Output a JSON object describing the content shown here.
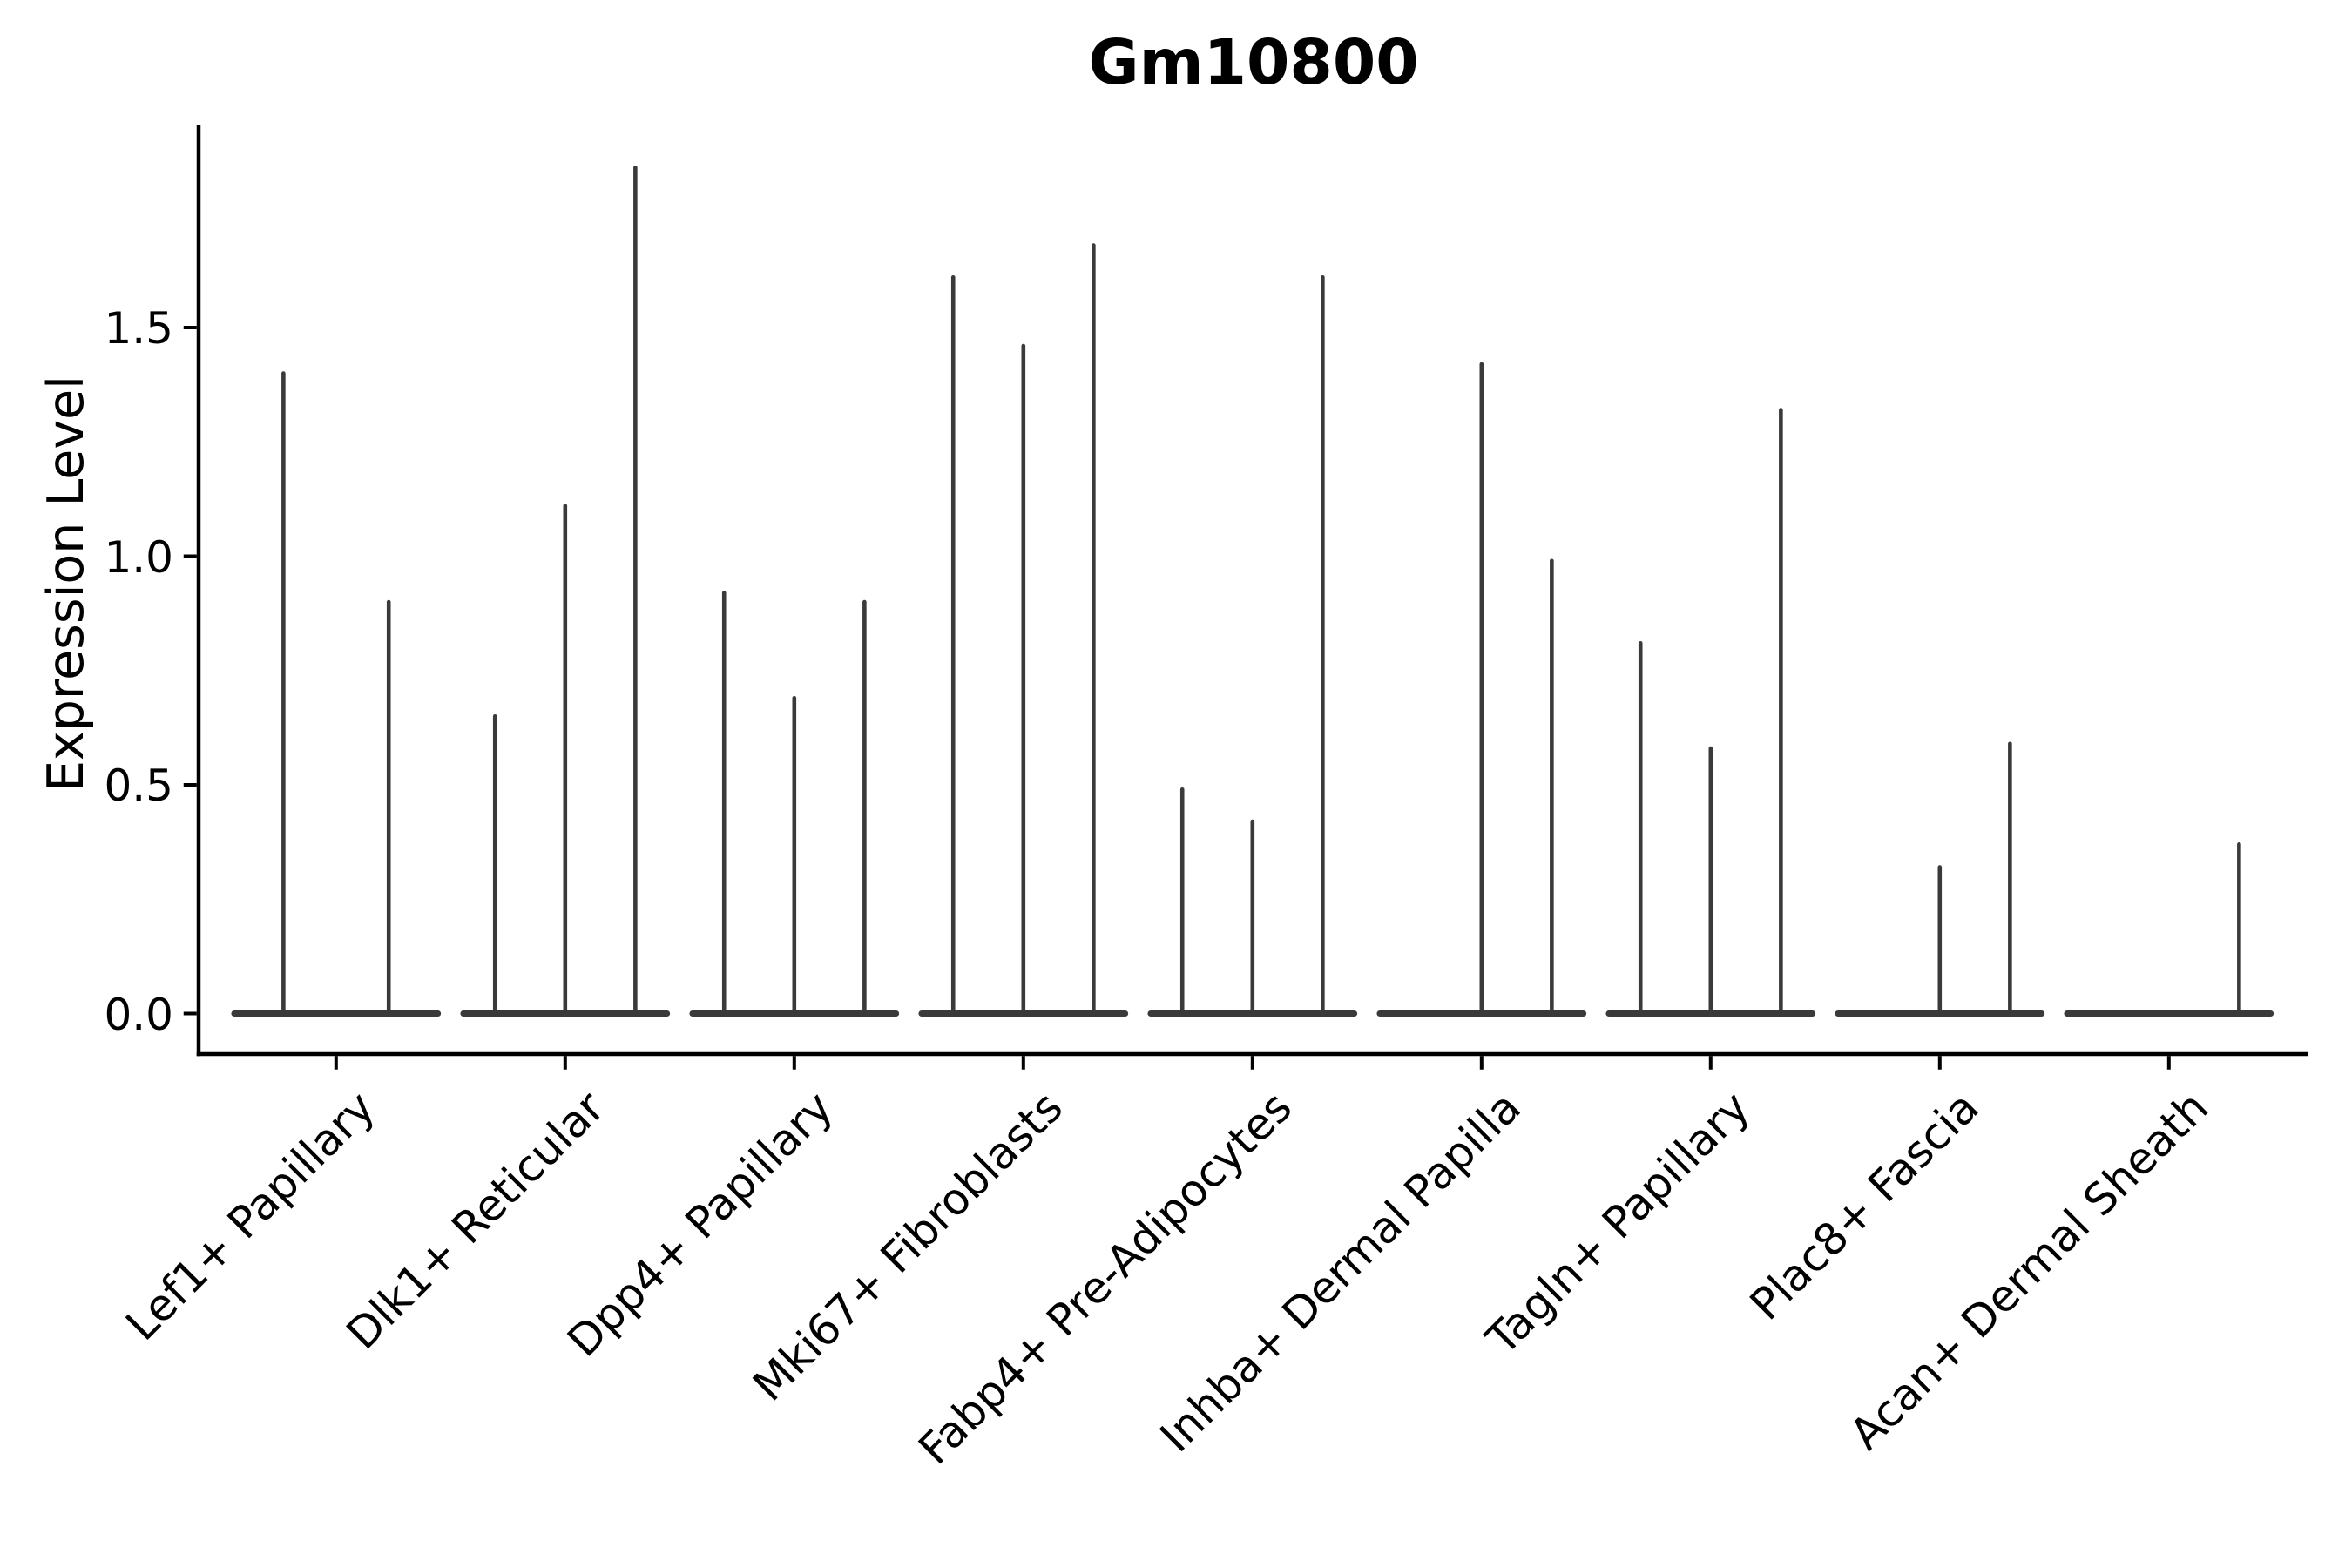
{
  "figure": {
    "title": "Gm10800",
    "ylabel": "Expression Level"
  },
  "chart_data": {
    "type": "violin",
    "title": "Gm10800",
    "xlabel": "",
    "ylabel": "Expression Level",
    "categories": [
      "Lef1+ Papillary",
      "Dlk1+ Reticular",
      "Dpp4+ Papillary",
      "Mki67+ Fibroblasts",
      "Fabp4+ Pre-Adipocytes",
      "Inhba+ Dermal Papilla",
      "Tagln+ Papillary",
      "Plac8+ Fascia",
      "Acan+ Dermal Sheath"
    ],
    "violin_max_expression": [
      [
        1.4,
        0.9
      ],
      [
        0.65,
        1.11,
        1.85
      ],
      [
        0.92,
        0.69,
        0.9
      ],
      [
        1.61,
        1.46,
        1.68
      ],
      [
        0.49,
        0.42,
        1.61
      ],
      [
        0.0,
        1.42,
        0.99
      ],
      [
        0.81,
        0.58,
        1.32
      ],
      [
        0.0,
        0.32,
        0.59
      ],
      [
        0.0,
        0.0,
        0.37
      ]
    ],
    "yticks": [
      0.0,
      0.5,
      1.0,
      1.5
    ],
    "ytick_labels": [
      "0.0",
      "0.5",
      "1.0",
      "1.5"
    ],
    "ylim": [
      -0.09,
      1.94
    ],
    "grid": false,
    "legend": null,
    "violin_color": "#3a3a3a",
    "axis_color": "#000000",
    "background_color": "#ffffff"
  }
}
